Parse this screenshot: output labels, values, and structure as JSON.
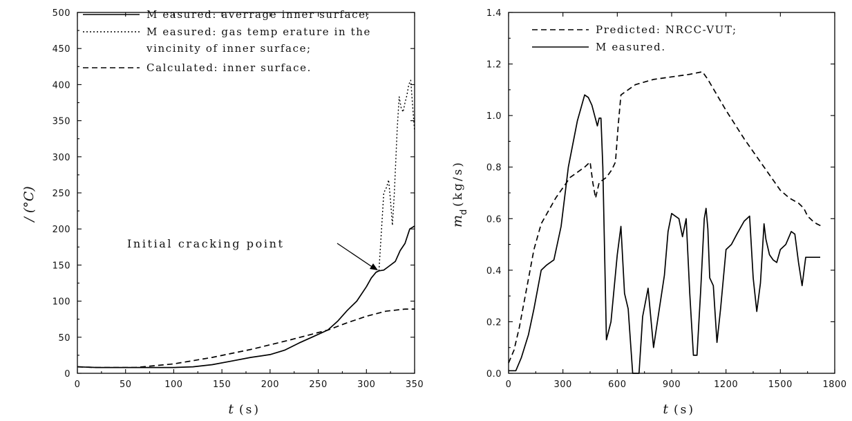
{
  "chart_data": [
    {
      "type": "line",
      "ylabel": "/ (°C)",
      "xlabel": {
        "var": "t",
        "unit": "(s)"
      },
      "xlim": [
        0,
        350
      ],
      "ylim": [
        0,
        500
      ],
      "x_ticks": [
        "0",
        "50",
        "100",
        "150",
        "200",
        "250",
        "300",
        "350"
      ],
      "y_ticks": [
        "0",
        "50",
        "100",
        "150",
        "200",
        "250",
        "300",
        "350",
        "400",
        "450",
        "500"
      ],
      "x_tick_values": [
        0,
        50,
        100,
        150,
        200,
        250,
        300,
        350
      ],
      "y_tick_values": [
        0,
        50,
        100,
        150,
        200,
        250,
        300,
        350,
        400,
        450,
        500
      ],
      "grid": false,
      "legend_position": "top-left",
      "legend": [
        {
          "text": "M easured: averrage inner surface;",
          "style": "solid"
        },
        {
          "text": "M easured: gas temp erature in the",
          "text2": "vincinity of inner surface;",
          "style": "dotted"
        },
        {
          "text": "Calculated: inner surface.",
          "style": "dashed"
        }
      ],
      "annotation": {
        "text": "Initial cracking point",
        "x": 313,
        "y": 142
      },
      "series": [
        {
          "style": "solid",
          "x": [
            0,
            20,
            50,
            80,
            100,
            120,
            140,
            160,
            180,
            200,
            215,
            230,
            245,
            260,
            270,
            280,
            290,
            300,
            305,
            310,
            313,
            318,
            323,
            330,
            335,
            340,
            345,
            350
          ],
          "y": [
            9,
            8,
            8,
            8,
            8,
            9,
            12,
            17,
            22,
            26,
            32,
            42,
            51,
            60,
            72,
            87,
            100,
            120,
            132,
            140,
            142,
            143,
            148,
            155,
            170,
            180,
            200,
            204
          ]
        },
        {
          "style": "dotted",
          "x": [
            313,
            318,
            321,
            323,
            325,
            327,
            329,
            332,
            334,
            336,
            338,
            340,
            342,
            344,
            346,
            348,
            350
          ],
          "y": [
            142,
            250,
            258,
            268,
            240,
            205,
            250,
            340,
            383,
            368,
            362,
            375,
            385,
            400,
            406,
            370,
            335
          ]
        },
        {
          "style": "dashed",
          "x": [
            0,
            20,
            60,
            100,
            140,
            180,
            220,
            260,
            280,
            300,
            320,
            340,
            350
          ],
          "y": [
            9,
            8,
            8,
            13,
            22,
            33,
            46,
            60,
            70,
            79,
            86,
            89,
            89
          ]
        }
      ]
    },
    {
      "type": "line",
      "ylabel": {
        "var": "m",
        "sub": "d",
        "unit": "(kg/s)"
      },
      "xlabel": {
        "var": "t",
        "unit": "(s)"
      },
      "xlim": [
        0,
        1800
      ],
      "ylim": [
        0.0,
        1.4
      ],
      "x_ticks": [
        "0",
        "300",
        "600",
        "900",
        "1200",
        "1500",
        "1800"
      ],
      "y_ticks": [
        "0.0",
        "0.2",
        "0.4",
        "0.6",
        "0.8",
        "1.0",
        "1.2",
        "1.4"
      ],
      "x_tick_values": [
        0,
        300,
        600,
        900,
        1200,
        1500,
        1800
      ],
      "y_tick_values": [
        0.0,
        0.2,
        0.4,
        0.6,
        0.8,
        1.0,
        1.2,
        1.4
      ],
      "grid": false,
      "legend_position": "top-left",
      "legend": [
        {
          "text": "Predicted: NRCC-VUT;",
          "style": "dashed"
        },
        {
          "text": "M easured.",
          "style": "solid"
        }
      ],
      "series": [
        {
          "name": "Predicted: NRCC-VUT;",
          "style": "dashed",
          "x": [
            0,
            30,
            60,
            100,
            140,
            180,
            220,
            260,
            300,
            340,
            380,
            420,
            450,
            465,
            480,
            500,
            540,
            570,
            590,
            605,
            620,
            700,
            800,
            900,
            1000,
            1070,
            1100,
            1200,
            1300,
            1400,
            1500,
            1550,
            1600,
            1630,
            1650,
            1680,
            1700,
            1730
          ],
          "y": [
            0.04,
            0.09,
            0.18,
            0.33,
            0.48,
            0.58,
            0.63,
            0.68,
            0.72,
            0.76,
            0.78,
            0.8,
            0.82,
            0.74,
            0.68,
            0.74,
            0.76,
            0.79,
            0.82,
            0.96,
            1.08,
            1.12,
            1.14,
            1.15,
            1.16,
            1.17,
            1.14,
            1.02,
            0.91,
            0.81,
            0.71,
            0.68,
            0.66,
            0.64,
            0.61,
            0.59,
            0.58,
            0.57
          ]
        },
        {
          "name": "M easured.",
          "style": "solid",
          "x": [
            0,
            40,
            70,
            110,
            140,
            180,
            210,
            250,
            290,
            330,
            380,
            420,
            440,
            460,
            490,
            500,
            510,
            520,
            540,
            565,
            600,
            620,
            640,
            660,
            685,
            690,
            720,
            740,
            770,
            800,
            830,
            860,
            880,
            900,
            920,
            940,
            960,
            980,
            1000,
            1020,
            1040,
            1060,
            1080,
            1090,
            1100,
            1110,
            1130,
            1150,
            1170,
            1200,
            1230,
            1260,
            1300,
            1330,
            1350,
            1370,
            1390,
            1410,
            1420,
            1440,
            1460,
            1480,
            1500,
            1530,
            1560,
            1580,
            1600,
            1620,
            1640,
            1660,
            1720
          ],
          "y": [
            0.01,
            0.01,
            0.06,
            0.15,
            0.25,
            0.4,
            0.42,
            0.44,
            0.57,
            0.8,
            0.98,
            1.08,
            1.07,
            1.04,
            0.96,
            0.99,
            0.99,
            0.8,
            0.13,
            0.2,
            0.46,
            0.57,
            0.31,
            0.25,
            0.0,
            0.0,
            0.0,
            0.22,
            0.33,
            0.1,
            0.24,
            0.38,
            0.55,
            0.62,
            0.61,
            0.6,
            0.53,
            0.6,
            0.31,
            0.07,
            0.07,
            0.32,
            0.6,
            0.64,
            0.56,
            0.37,
            0.34,
            0.12,
            0.25,
            0.48,
            0.5,
            0.54,
            0.59,
            0.61,
            0.37,
            0.24,
            0.35,
            0.58,
            0.52,
            0.46,
            0.44,
            0.43,
            0.48,
            0.5,
            0.55,
            0.54,
            0.43,
            0.34,
            0.45,
            0.45,
            0.45
          ]
        }
      ]
    }
  ]
}
